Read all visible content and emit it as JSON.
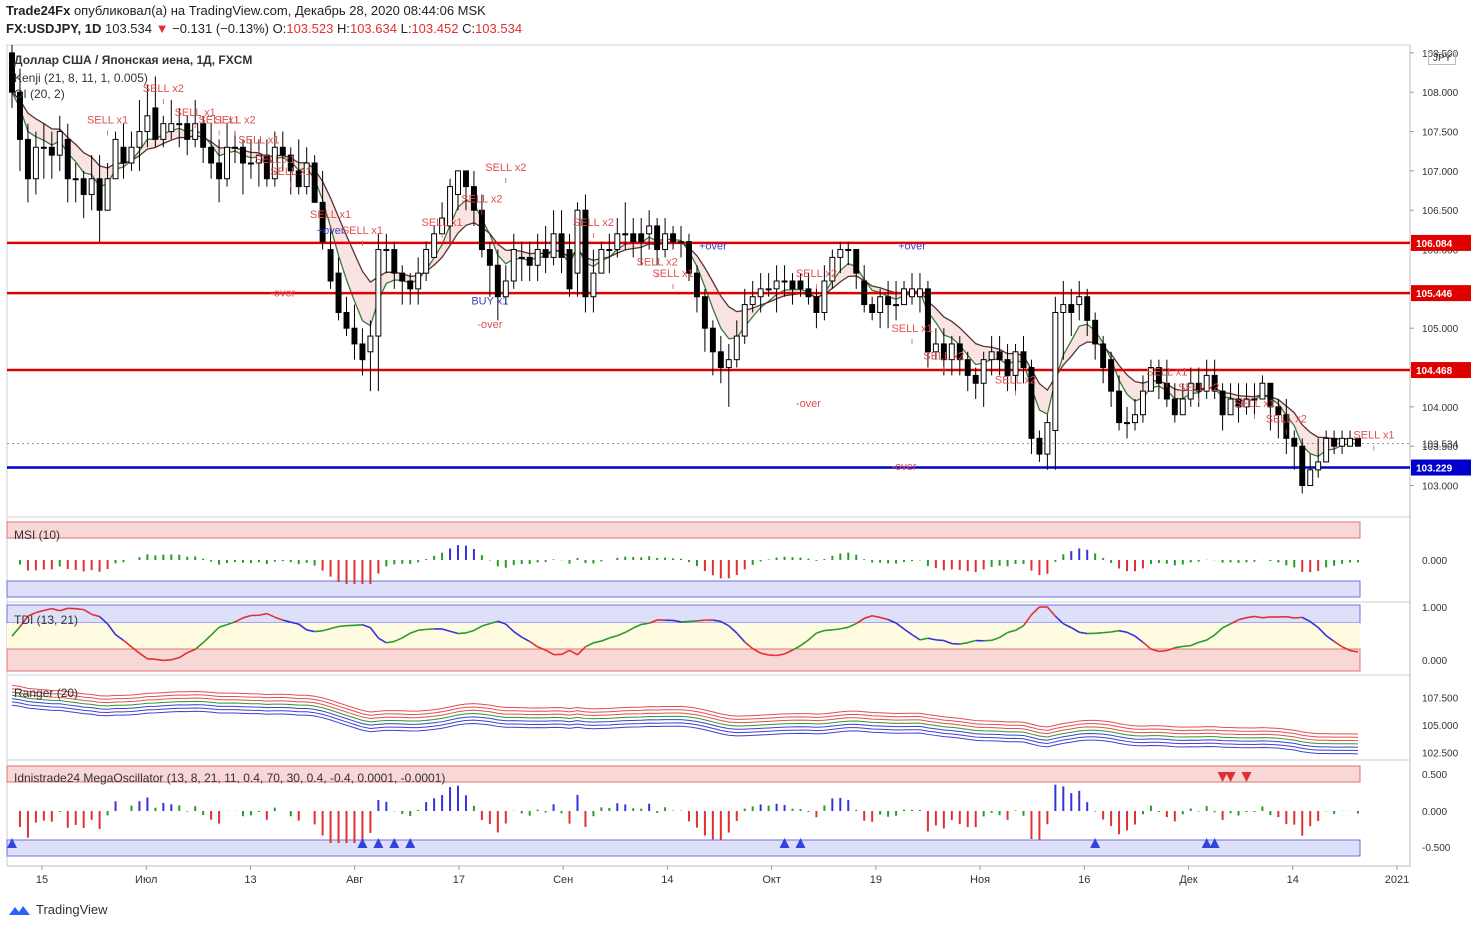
{
  "header": {
    "publisher": "Trade24Fx",
    "published_text": "опубликовал(а) на TradingView.com, Декабрь 28, 2020 08:44:06 MSK",
    "symbol": "FX:USDJPY, 1D",
    "last": "103.534",
    "change": "−0.131 (−0.13%)",
    "o_label": "O:",
    "o": "103.523",
    "h_label": "H:",
    "h": "103.634",
    "l_label": "L:",
    "l": "103.452",
    "c_label": "C:",
    "c": "103.534"
  },
  "main_pane": {
    "title": "Доллар США / Японская иена, 1Д, FXCM",
    "indicator1": "Kenji (21, 8, 11, 1, 0.005)",
    "indicator2": "OI (20, 2)",
    "currency_badge": "JPY"
  },
  "sub_panes": {
    "msi": "MSI (10)",
    "tdi": "TDI (13, 21)",
    "ranger": "Ranger (20)",
    "mega": "Idnistrade24 MegaOscillator (13, 8, 21, 11, 0.4, 70, 30, 0.4, -0.4, 0.0001, -0.0001)"
  },
  "footer": {
    "brand": "TradingView"
  },
  "colors": {
    "bull": "#ffffff",
    "bear": "#000000",
    "level_red": "#e00000",
    "level_blue": "#0000cc",
    "signal": "#e05050"
  },
  "chart_data": {
    "type": "candlestick",
    "price_axis": {
      "ticks": [
        "108.500",
        "108.000",
        "107.500",
        "107.000",
        "106.500",
        "106.000",
        "105.500",
        "105.000",
        "104.500",
        "104.000",
        "103.500",
        "103.000"
      ],
      "ylim": [
        102.6,
        108.6
      ]
    },
    "time_axis": {
      "labels": [
        "15",
        "Июл",
        "13",
        "Авг",
        "17",
        "Сен",
        "14",
        "Окт",
        "19",
        "Ноя",
        "16",
        "Дек",
        "14",
        "2021"
      ]
    },
    "levels": [
      {
        "label": "106.084",
        "value": 106.084,
        "color": "#e00000"
      },
      {
        "label": "105.446",
        "value": 105.446,
        "color": "#e00000"
      },
      {
        "label": "104.468",
        "value": 104.468,
        "color": "#e00000"
      },
      {
        "label": "103.229",
        "value": 103.229,
        "color": "#0000cc"
      }
    ],
    "last_price_label": "103.534",
    "candles": [
      [
        108.5,
        108.0,
        108.6,
        107.8
      ],
      [
        108.0,
        107.4,
        108.3,
        107.0
      ],
      [
        107.4,
        106.9,
        107.6,
        106.6
      ],
      [
        106.9,
        107.3,
        107.5,
        106.7
      ],
      [
        107.3,
        107.3,
        107.6,
        106.9
      ],
      [
        107.3,
        107.2,
        107.5,
        106.9
      ],
      [
        107.2,
        107.5,
        107.7,
        107.0
      ],
      [
        107.4,
        106.9,
        107.6,
        106.6
      ],
      [
        106.9,
        106.9,
        107.1,
        106.6
      ],
      [
        106.9,
        106.7,
        107.0,
        106.4
      ],
      [
        106.7,
        106.9,
        107.2,
        106.5
      ],
      [
        106.9,
        106.5,
        107.2,
        106.1
      ],
      [
        106.5,
        106.9,
        107.1,
        106.5
      ],
      [
        106.9,
        107.4,
        107.5,
        106.9
      ],
      [
        107.3,
        107.1,
        107.6,
        106.9
      ],
      [
        107.1,
        107.3,
        107.5,
        107.0
      ],
      [
        107.3,
        107.5,
        107.9,
        107.0
      ],
      [
        107.5,
        107.7,
        108.1,
        107.3
      ],
      [
        107.8,
        107.4,
        108.2,
        107.3
      ],
      [
        107.4,
        107.6,
        107.7,
        107.3
      ],
      [
        107.5,
        107.6,
        107.9,
        107.4
      ],
      [
        107.6,
        107.6,
        107.8,
        107.3
      ],
      [
        107.6,
        107.4,
        107.7,
        107.2
      ],
      [
        107.4,
        107.6,
        107.9,
        107.3
      ],
      [
        107.6,
        107.3,
        107.7,
        107.1
      ],
      [
        107.3,
        107.1,
        107.6,
        106.9
      ],
      [
        107.1,
        106.9,
        107.4,
        106.6
      ],
      [
        106.9,
        107.3,
        107.6,
        106.8
      ],
      [
        107.3,
        107.3,
        107.5,
        107.1
      ],
      [
        107.3,
        107.1,
        107.4,
        106.7
      ],
      [
        107.1,
        107.1,
        107.4,
        106.9
      ],
      [
        107.1,
        107.2,
        107.4,
        106.8
      ],
      [
        107.2,
        106.9,
        107.4,
        106.8
      ],
      [
        106.9,
        107.3,
        107.5,
        106.8
      ],
      [
        107.3,
        107.2,
        107.5,
        107.0
      ],
      [
        107.2,
        107.0,
        107.3,
        106.7
      ],
      [
        107.0,
        106.8,
        107.4,
        106.7
      ],
      [
        106.8,
        107.1,
        107.3,
        106.7
      ],
      [
        107.1,
        106.6,
        107.2,
        106.6
      ],
      [
        106.6,
        106.1,
        107.0,
        106.0
      ],
      [
        106.0,
        105.6,
        106.3,
        105.5
      ],
      [
        105.7,
        105.2,
        105.9,
        105.1
      ],
      [
        105.2,
        105.0,
        105.4,
        104.9
      ],
      [
        105.0,
        104.8,
        105.3,
        104.6
      ],
      [
        104.8,
        104.6,
        105.0,
        104.4
      ],
      [
        104.7,
        104.9,
        105.1,
        104.2
      ],
      [
        104.9,
        106.0,
        106.2,
        104.2
      ],
      [
        106.0,
        106.0,
        106.2,
        105.7
      ],
      [
        106.0,
        105.7,
        106.1,
        105.5
      ],
      [
        105.7,
        105.6,
        105.8,
        105.3
      ],
      [
        105.6,
        105.5,
        105.7,
        105.3
      ],
      [
        105.5,
        105.7,
        105.9,
        105.3
      ],
      [
        105.7,
        106.0,
        106.1,
        105.6
      ],
      [
        105.9,
        106.2,
        106.3,
        105.9
      ],
      [
        106.2,
        106.4,
        106.6,
        106.2
      ],
      [
        106.3,
        106.8,
        106.9,
        106.1
      ],
      [
        106.7,
        107.0,
        107.0,
        106.5
      ],
      [
        107.0,
        106.8,
        107.0,
        106.5
      ],
      [
        106.8,
        106.5,
        107.0,
        106.3
      ],
      [
        106.5,
        106.0,
        106.7,
        105.9
      ],
      [
        106.0,
        105.8,
        106.1,
        105.4
      ],
      [
        105.8,
        105.4,
        106.0,
        105.1
      ],
      [
        105.4,
        105.6,
        105.8,
        105.3
      ],
      [
        105.6,
        106.0,
        106.2,
        105.5
      ],
      [
        105.9,
        105.9,
        106.1,
        105.6
      ],
      [
        105.9,
        105.8,
        106.1,
        105.6
      ],
      [
        105.8,
        106.0,
        106.2,
        105.6
      ],
      [
        106.0,
        105.9,
        106.3,
        105.7
      ],
      [
        105.9,
        106.2,
        106.5,
        105.8
      ],
      [
        106.2,
        105.9,
        106.5,
        105.7
      ],
      [
        106.0,
        105.5,
        106.2,
        105.4
      ],
      [
        105.7,
        106.5,
        106.6,
        105.4
      ],
      [
        106.5,
        105.4,
        106.7,
        105.2
      ],
      [
        105.4,
        105.7,
        106.0,
        105.2
      ],
      [
        105.7,
        106.0,
        106.1,
        105.7
      ],
      [
        106.0,
        106.0,
        106.2,
        105.7
      ],
      [
        106.0,
        106.2,
        106.4,
        105.9
      ],
      [
        106.2,
        106.2,
        106.6,
        106.0
      ],
      [
        106.2,
        106.1,
        106.4,
        105.9
      ],
      [
        106.2,
        106.1,
        106.4,
        105.8
      ],
      [
        106.2,
        106.3,
        106.5,
        106.0
      ],
      [
        106.3,
        106.0,
        106.4,
        105.8
      ],
      [
        106.0,
        106.2,
        106.4,
        105.9
      ],
      [
        106.2,
        106.1,
        106.3,
        106.0
      ],
      [
        106.1,
        106.1,
        106.3,
        105.9
      ],
      [
        106.1,
        105.7,
        106.2,
        105.6
      ],
      [
        105.7,
        105.4,
        105.8,
        105.2
      ],
      [
        105.4,
        105.0,
        105.5,
        104.7
      ],
      [
        105.0,
        104.7,
        105.1,
        104.4
      ],
      [
        104.7,
        104.5,
        104.9,
        104.3
      ],
      [
        104.5,
        104.6,
        104.8,
        104.0
      ],
      [
        104.6,
        104.9,
        105.1,
        104.5
      ],
      [
        104.9,
        105.3,
        105.5,
        104.8
      ],
      [
        105.3,
        105.4,
        105.6,
        105.2
      ],
      [
        105.4,
        105.5,
        105.7,
        105.2
      ],
      [
        105.5,
        105.5,
        105.7,
        105.4
      ],
      [
        105.5,
        105.6,
        105.8,
        105.2
      ],
      [
        105.6,
        105.6,
        105.8,
        105.4
      ],
      [
        105.6,
        105.5,
        105.7,
        105.3
      ],
      [
        105.6,
        105.5,
        105.7,
        105.4
      ],
      [
        105.5,
        105.4,
        105.7,
        105.3
      ],
      [
        105.4,
        105.2,
        105.5,
        105.0
      ],
      [
        105.2,
        105.6,
        105.8,
        105.1
      ],
      [
        105.6,
        105.9,
        106.0,
        105.5
      ],
      [
        105.9,
        106.0,
        106.1,
        105.7
      ],
      [
        106.0,
        106.0,
        106.1,
        105.8
      ],
      [
        106.0,
        105.7,
        106.0,
        105.5
      ],
      [
        105.6,
        105.3,
        105.8,
        105.2
      ],
      [
        105.3,
        105.2,
        105.4,
        105.1
      ],
      [
        105.2,
        105.4,
        105.5,
        105.0
      ],
      [
        105.4,
        105.3,
        105.6,
        105.0
      ],
      [
        105.3,
        105.3,
        105.6,
        105.1
      ],
      [
        105.3,
        105.5,
        105.6,
        105.3
      ],
      [
        105.4,
        105.5,
        105.7,
        105.3
      ],
      [
        105.4,
        105.5,
        105.7,
        105.2
      ],
      [
        105.5,
        104.7,
        105.6,
        104.5
      ],
      [
        104.7,
        104.8,
        105.0,
        104.6
      ],
      [
        104.8,
        104.6,
        105.0,
        104.4
      ],
      [
        104.6,
        104.8,
        104.9,
        104.4
      ],
      [
        104.8,
        104.6,
        104.9,
        104.4
      ],
      [
        104.6,
        104.4,
        104.7,
        104.2
      ],
      [
        104.4,
        104.3,
        104.5,
        104.1
      ],
      [
        104.3,
        104.6,
        104.7,
        104.0
      ],
      [
        104.6,
        104.7,
        104.9,
        104.4
      ],
      [
        104.7,
        104.6,
        104.9,
        104.4
      ],
      [
        104.6,
        104.4,
        104.8,
        104.2
      ],
      [
        104.4,
        104.7,
        104.8,
        104.2
      ],
      [
        104.7,
        104.5,
        104.9,
        104.3
      ],
      [
        104.5,
        103.6,
        104.6,
        103.4
      ],
      [
        103.6,
        103.4,
        103.7,
        103.3
      ],
      [
        103.4,
        103.8,
        103.9,
        103.2
      ],
      [
        103.7,
        105.2,
        105.4,
        103.2
      ],
      [
        105.2,
        105.3,
        105.6,
        104.6
      ],
      [
        105.3,
        105.2,
        105.5,
        104.9
      ],
      [
        105.3,
        105.4,
        105.6,
        105.1
      ],
      [
        105.4,
        105.1,
        105.5,
        104.9
      ],
      [
        105.1,
        104.8,
        105.2,
        104.6
      ],
      [
        104.8,
        104.5,
        104.9,
        104.3
      ],
      [
        104.6,
        104.2,
        104.7,
        104.0
      ],
      [
        104.2,
        103.8,
        104.4,
        103.7
      ],
      [
        103.8,
        103.8,
        104.0,
        103.6
      ],
      [
        103.8,
        103.9,
        104.1,
        103.7
      ],
      [
        103.9,
        104.2,
        104.4,
        103.8
      ],
      [
        104.2,
        104.5,
        104.6,
        104.2
      ],
      [
        104.5,
        104.3,
        104.6,
        104.1
      ],
      [
        104.3,
        104.1,
        104.6,
        104.0
      ],
      [
        104.1,
        103.9,
        104.3,
        103.8
      ],
      [
        103.9,
        104.1,
        104.3,
        103.9
      ],
      [
        104.1,
        104.3,
        104.5,
        104.0
      ],
      [
        104.3,
        104.2,
        104.5,
        104.0
      ],
      [
        104.2,
        104.4,
        104.6,
        104.1
      ],
      [
        104.4,
        104.2,
        104.6,
        104.1
      ],
      [
        104.2,
        103.9,
        104.3,
        103.7
      ],
      [
        103.9,
        104.1,
        104.3,
        103.9
      ],
      [
        104.1,
        104.0,
        104.3,
        103.8
      ],
      [
        104.0,
        104.1,
        104.3,
        103.9
      ],
      [
        104.1,
        104.1,
        104.3,
        103.9
      ],
      [
        104.1,
        104.3,
        104.4,
        104.1
      ],
      [
        104.3,
        104.0,
        104.3,
        103.7
      ],
      [
        104.0,
        103.9,
        104.1,
        103.6
      ],
      [
        103.9,
        103.6,
        104.1,
        103.4
      ],
      [
        103.6,
        103.5,
        103.7,
        103.2
      ],
      [
        103.5,
        103.0,
        103.6,
        102.9
      ],
      [
        103.0,
        103.2,
        103.4,
        103.0
      ],
      [
        103.2,
        103.3,
        103.6,
        103.1
      ],
      [
        103.3,
        103.6,
        103.7,
        103.3
      ],
      [
        103.6,
        103.5,
        103.7,
        103.4
      ],
      [
        103.5,
        103.6,
        103.7,
        103.4
      ],
      [
        103.5,
        103.6,
        103.7,
        103.5
      ],
      [
        103.6,
        103.5,
        103.6,
        103.5
      ]
    ],
    "signals": [
      {
        "text": "SELL x1",
        "i": 12,
        "price": 107.6
      },
      {
        "text": "SELL x2",
        "i": 19,
        "price": 108.0
      },
      {
        "text": "SELL x1",
        "i": 23,
        "price": 107.7
      },
      {
        "text": "SELL x1",
        "i": 26,
        "price": 107.6
      },
      {
        "text": "SELL x2",
        "i": 28,
        "price": 107.6
      },
      {
        "text": "SELL x1",
        "i": 31,
        "price": 107.35
      },
      {
        "text": "SELL x1",
        "i": 33,
        "price": 107.1
      },
      {
        "text": "SELL x1",
        "i": 35,
        "price": 106.95
      },
      {
        "text": "SELL x1",
        "i": 40,
        "price": 106.4
      },
      {
        "text": "SELL x1",
        "i": 44,
        "price": 106.2
      },
      {
        "text": "SELL x1",
        "i": 54,
        "price": 106.3
      },
      {
        "text": "SELL x2",
        "i": 59,
        "price": 106.6
      },
      {
        "text": "SELL x2",
        "i": 62,
        "price": 107.0
      },
      {
        "text": "SELL x2",
        "i": 73,
        "price": 106.3
      },
      {
        "text": "SELL x2",
        "i": 81,
        "price": 105.8
      },
      {
        "text": "SELL x1",
        "i": 83,
        "price": 105.65
      },
      {
        "text": "SELL x2",
        "i": 101,
        "price": 105.65
      },
      {
        "text": "SELL x1",
        "i": 113,
        "price": 104.95
      },
      {
        "text": "SELL x2",
        "i": 117,
        "price": 104.6
      },
      {
        "text": "SELL x2",
        "i": 126,
        "price": 104.3
      },
      {
        "text": "SELL x1",
        "i": 145,
        "price": 104.4
      },
      {
        "text": "SELL x2",
        "i": 149,
        "price": 104.2
      },
      {
        "text": "SELL x1",
        "i": 156,
        "price": 104.0
      },
      {
        "text": "SELL x2",
        "i": 160,
        "price": 103.8
      },
      {
        "text": "SELL x1",
        "i": 171,
        "price": 103.6
      }
    ],
    "over_labels": [
      {
        "text": "-over",
        "i": 34,
        "price": 105.4,
        "color": "#e05050"
      },
      {
        "text": "+over",
        "i": 40,
        "price": 106.2,
        "color": "#4040c0"
      },
      {
        "text": "BUY x1",
        "i": 60,
        "price": 105.3,
        "color": "#4040c0"
      },
      {
        "text": "-over",
        "i": 60,
        "price": 105.0,
        "color": "#e05050"
      },
      {
        "text": "+over",
        "i": 88,
        "price": 106.0,
        "color": "#4040c0"
      },
      {
        "text": "-over",
        "i": 100,
        "price": 104.0,
        "color": "#e05050"
      },
      {
        "text": "+over",
        "i": 113,
        "price": 106.0,
        "color": "#4040c0"
      },
      {
        "text": "-over",
        "i": 112,
        "price": 103.2,
        "color": "#e05050"
      }
    ],
    "panes": [
      {
        "name": "MSI (10)",
        "ticks": [
          "0.000"
        ]
      },
      {
        "name": "TDI (13, 21)",
        "ticks": [
          "1.000",
          "0.000"
        ]
      },
      {
        "name": "Ranger (20)",
        "ticks": [
          "107.500",
          "105.000",
          "102.500"
        ]
      },
      {
        "name": "Idnistrade24 MegaOscillator",
        "ticks": [
          "0.500",
          "0.000",
          "-0.500"
        ]
      }
    ]
  }
}
